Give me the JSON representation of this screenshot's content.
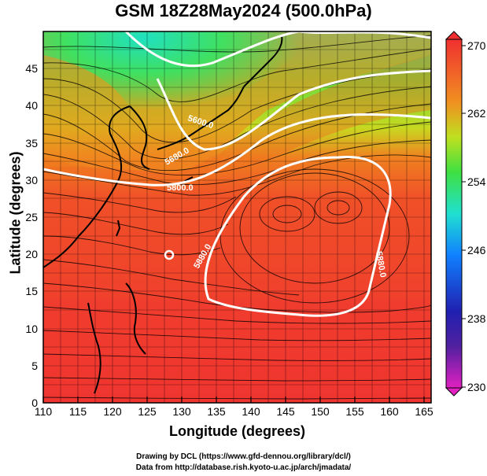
{
  "title": "GSM 18Z28May2024 (500.0hPa)",
  "x_axis": {
    "label": "Longitude (degrees)",
    "ticks": [
      "110",
      "115",
      "120",
      "125",
      "130",
      "135",
      "140",
      "145",
      "150",
      "155",
      "160",
      "165"
    ]
  },
  "y_axis": {
    "label": "Latitude  (degrees)",
    "ticks": [
      "0",
      "5",
      "10",
      "15",
      "20",
      "25",
      "30",
      "35",
      "40",
      "45"
    ]
  },
  "colorbar": {
    "ticks": [
      "230",
      "238",
      "246",
      "254",
      "262",
      "270"
    ],
    "colors": [
      "#e020c0",
      "#2020a0",
      "#1060ff",
      "#20d0ff",
      "#30e060",
      "#c8e020",
      "#f0a020",
      "#f05020",
      "#f03030"
    ]
  },
  "contours": [
    {
      "label": "5600.0"
    },
    {
      "label": "5680.0"
    },
    {
      "label": "5800.0"
    },
    {
      "label": "5880.0"
    },
    {
      "label": "5880.0"
    }
  ],
  "credits": [
    "Drawing by DCL (https://www.gfd-dennou.org/library/dcl/)",
    "Data from http://database.rish.kyoto-u.ac.jp/arch/jmadata/"
  ]
}
